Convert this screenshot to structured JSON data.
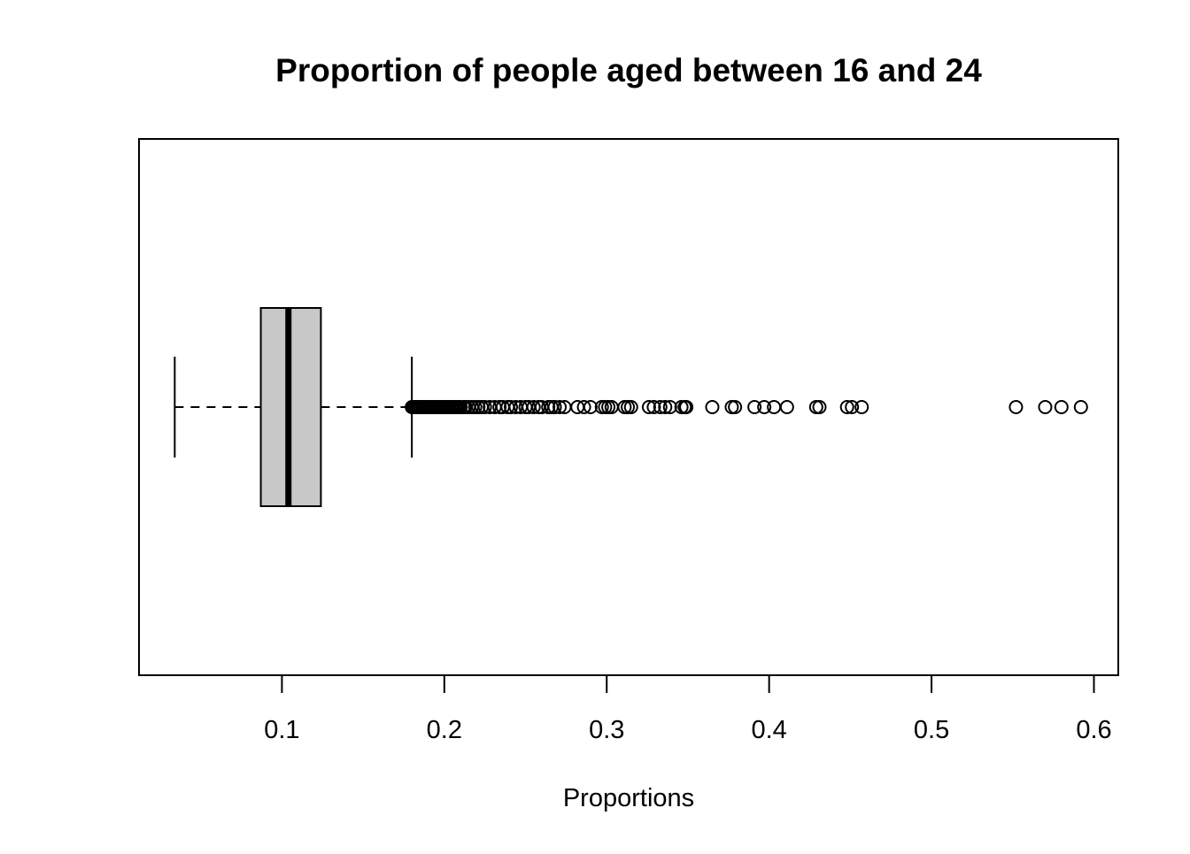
{
  "chart_data": {
    "type": "boxplot",
    "orientation": "horizontal",
    "title": "Proportion of people aged between 16 and 24",
    "xlabel": "Proportions",
    "ylabel": "",
    "xlim": [
      0.012,
      0.615
    ],
    "x_ticks": [
      0.1,
      0.2,
      0.3,
      0.4,
      0.5,
      0.6
    ],
    "x_tick_labels": [
      "0.1",
      "0.2",
      "0.3",
      "0.4",
      "0.5",
      "0.6"
    ],
    "grid": false,
    "legend": "none",
    "box_fill": "#c8c8c8",
    "stroke_color": "#000000",
    "series": [
      {
        "name": "Proportions",
        "whisker_low": 0.034,
        "q1": 0.087,
        "median": 0.104,
        "q3": 0.124,
        "whisker_high": 0.18,
        "outliers": [
          0.18,
          0.181,
          0.182,
          0.183,
          0.184,
          0.185,
          0.186,
          0.187,
          0.188,
          0.189,
          0.19,
          0.191,
          0.192,
          0.193,
          0.194,
          0.195,
          0.196,
          0.197,
          0.198,
          0.199,
          0.2,
          0.201,
          0.202,
          0.203,
          0.204,
          0.205,
          0.206,
          0.207,
          0.208,
          0.209,
          0.21,
          0.212,
          0.213,
          0.215,
          0.217,
          0.219,
          0.221,
          0.223,
          0.225,
          0.228,
          0.231,
          0.234,
          0.236,
          0.239,
          0.241,
          0.244,
          0.247,
          0.25,
          0.252,
          0.255,
          0.258,
          0.26,
          0.264,
          0.266,
          0.268,
          0.271,
          0.274,
          0.282,
          0.286,
          0.29,
          0.297,
          0.299,
          0.301,
          0.303,
          0.311,
          0.313,
          0.315,
          0.326,
          0.329,
          0.333,
          0.336,
          0.339,
          0.346,
          0.348,
          0.349,
          0.365,
          0.377,
          0.379,
          0.391,
          0.397,
          0.403,
          0.411,
          0.429,
          0.431,
          0.448,
          0.451,
          0.457,
          0.552,
          0.57,
          0.58,
          0.592
        ]
      }
    ]
  }
}
